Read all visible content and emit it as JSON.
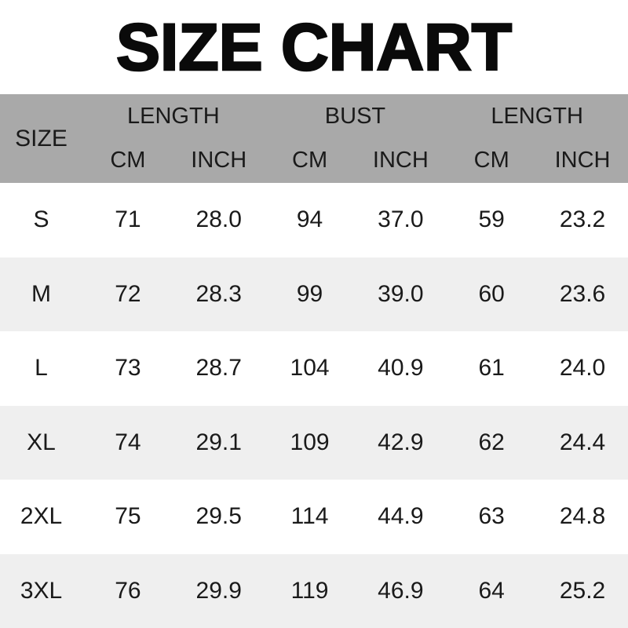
{
  "title": "SIZE CHART",
  "colors": {
    "header_bg": "#a9a9a9",
    "row_alt_bg": "#efefef",
    "row_bg": "#ffffff",
    "text": "#1a1a1a",
    "title_text": "#0a0a0a"
  },
  "table": {
    "size_header": "SIZE",
    "groups": [
      {
        "label": "LENGTH"
      },
      {
        "label": "BUST"
      },
      {
        "label": "LENGTH"
      }
    ],
    "sub_headers": [
      "CM",
      "INCH",
      "CM",
      "INCH",
      "CM",
      "INCH"
    ],
    "rows": [
      {
        "size": "S",
        "cells": [
          "71",
          "28.0",
          "94",
          "37.0",
          "59",
          "23.2"
        ]
      },
      {
        "size": "M",
        "cells": [
          "72",
          "28.3",
          "99",
          "39.0",
          "60",
          "23.6"
        ]
      },
      {
        "size": "L",
        "cells": [
          "73",
          "28.7",
          "104",
          "40.9",
          "61",
          "24.0"
        ]
      },
      {
        "size": "XL",
        "cells": [
          "74",
          "29.1",
          "109",
          "42.9",
          "62",
          "24.4"
        ]
      },
      {
        "size": "2XL",
        "cells": [
          "75",
          "29.5",
          "114",
          "44.9",
          "63",
          "24.8"
        ]
      },
      {
        "size": "3XL",
        "cells": [
          "76",
          "29.9",
          "119",
          "46.9",
          "64",
          "25.2"
        ]
      }
    ]
  },
  "chart_data": {
    "type": "table",
    "title": "SIZE CHART",
    "columns": [
      "SIZE",
      "LENGTH CM",
      "LENGTH INCH",
      "BUST CM",
      "BUST INCH",
      "LENGTH CM",
      "LENGTH INCH"
    ],
    "rows": [
      [
        "S",
        71,
        28.0,
        94,
        37.0,
        59,
        23.2
      ],
      [
        "M",
        72,
        28.3,
        99,
        39.0,
        60,
        23.6
      ],
      [
        "L",
        73,
        28.7,
        104,
        40.9,
        61,
        24.0
      ],
      [
        "XL",
        74,
        29.1,
        109,
        42.9,
        62,
        24.4
      ],
      [
        "2XL",
        75,
        29.5,
        114,
        44.9,
        63,
        24.8
      ],
      [
        "3XL",
        76,
        29.9,
        119,
        46.9,
        64,
        25.2
      ]
    ]
  }
}
